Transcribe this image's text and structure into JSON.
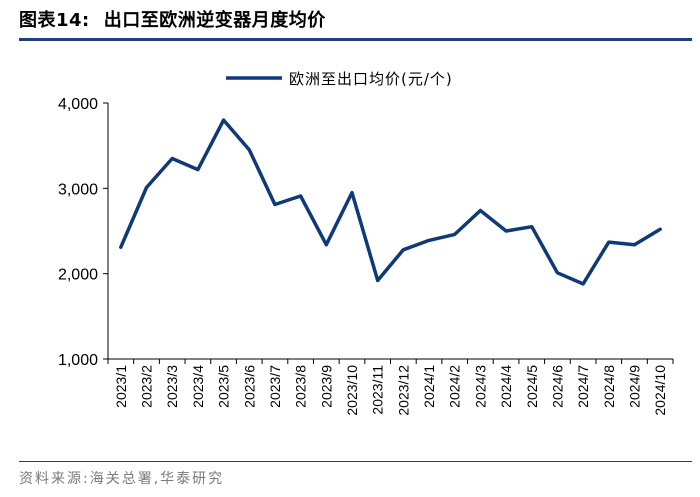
{
  "figure": {
    "label": "图表14:",
    "title": "出口至欧洲逆变器月度均价",
    "source": "资料来源:海关总署,华泰研究"
  },
  "colors": {
    "series": "#0e3a78",
    "rule": "#1f3f7a",
    "axis": "#000000"
  },
  "chart_data": {
    "type": "line",
    "categories": [
      "2023/1",
      "2023/2",
      "2023/3",
      "2023/4",
      "2023/5",
      "2023/6",
      "2023/7",
      "2023/8",
      "2023/9",
      "2023/10",
      "2023/11",
      "2023/12",
      "2024/1",
      "2024/2",
      "2024/3",
      "2024/4",
      "2024/5",
      "2024/6",
      "2024/7",
      "2024/8",
      "2024/9",
      "2024/10"
    ],
    "series": [
      {
        "name": "欧洲至出口均价(元/个)",
        "values": [
          2310,
          3010,
          3350,
          3220,
          3800,
          3450,
          2810,
          2910,
          2340,
          2950,
          1920,
          2280,
          2390,
          2460,
          2740,
          2500,
          2550,
          2010,
          1880,
          2370,
          2340,
          2520
        ]
      }
    ],
    "ylim": [
      1000,
      4000
    ],
    "yticks": [
      1000,
      2000,
      3000,
      4000
    ],
    "ytick_labels": [
      "1,000",
      "2,000",
      "3,000",
      "4,000"
    ],
    "legend_position": "top-center",
    "grid": false,
    "xlabel": "",
    "ylabel": ""
  }
}
